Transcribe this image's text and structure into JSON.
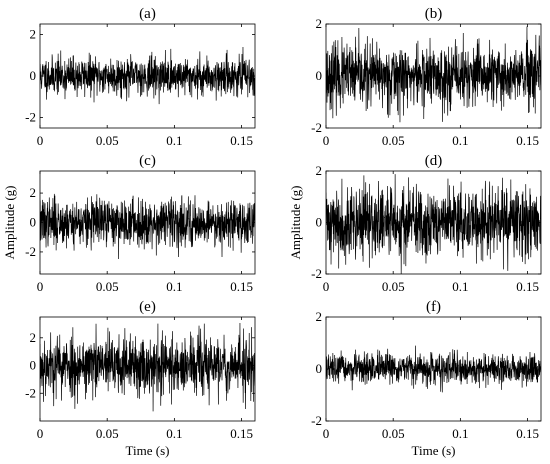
{
  "chart_data": [
    {
      "type": "line",
      "title": "(a)",
      "ylabel": "",
      "xlabel": "",
      "xlim": [
        0,
        0.16
      ],
      "ylim": [
        -2.5,
        2.5
      ],
      "xticks": [
        0,
        0.05,
        0.1,
        0.15
      ],
      "xtick_labels": [
        "0",
        "0.05",
        "0.1",
        "0.15"
      ],
      "yticks": [
        -2,
        0,
        2
      ],
      "ytick_labels": [
        "-2",
        "0",
        "2"
      ],
      "grid": false,
      "series": [
        {
          "amplitude_std": 0.45,
          "amplitude_peak": 2.3,
          "sample_interval_s": 0.00015,
          "seed": 11
        }
      ]
    },
    {
      "type": "line",
      "title": "(b)",
      "ylabel": "",
      "xlabel": "",
      "xlim": [
        0,
        0.16
      ],
      "ylim": [
        -2,
        2
      ],
      "xticks": [
        0,
        0.05,
        0.1,
        0.15
      ],
      "xtick_labels": [
        "0",
        "0.05",
        "0.1",
        "0.15"
      ],
      "yticks": [
        -2,
        0,
        2
      ],
      "ytick_labels": [
        "-2",
        "0",
        "2"
      ],
      "grid": false,
      "series": [
        {
          "amplitude_std": 0.6,
          "amplitude_peak": 2.0,
          "sample_interval_s": 0.00015,
          "seed": 23
        }
      ]
    },
    {
      "type": "line",
      "title": "(c)",
      "ylabel": "Amplitude (g)",
      "xlabel": "",
      "xlim": [
        0,
        0.16
      ],
      "ylim": [
        -3.5,
        3.5
      ],
      "xticks": [
        0,
        0.05,
        0.1,
        0.15
      ],
      "xtick_labels": [
        "0",
        "0.05",
        "0.1",
        "0.15"
      ],
      "yticks": [
        -2,
        0,
        2
      ],
      "ytick_labels": [
        "-2",
        "0",
        "2"
      ],
      "grid": false,
      "series": [
        {
          "amplitude_std": 0.8,
          "amplitude_peak": 3.3,
          "sample_interval_s": 0.00015,
          "seed": 37
        }
      ]
    },
    {
      "type": "line",
      "title": "(d)",
      "ylabel": "Amplitude (g)",
      "xlabel": "",
      "xlim": [
        0,
        0.16
      ],
      "ylim": [
        -2,
        2
      ],
      "xticks": [
        0,
        0.05,
        0.1,
        0.15
      ],
      "xtick_labels": [
        "0",
        "0.05",
        "0.1",
        "0.15"
      ],
      "yticks": [
        -2,
        0,
        2
      ],
      "ytick_labels": [
        "-2",
        "0",
        "2"
      ],
      "grid": false,
      "series": [
        {
          "amplitude_std": 0.7,
          "amplitude_peak": 2.0,
          "sample_interval_s": 0.00015,
          "seed": 41
        }
      ]
    },
    {
      "type": "line",
      "title": "(e)",
      "ylabel": "",
      "xlabel": "Time (s)",
      "xlim": [
        0,
        0.16
      ],
      "ylim": [
        -4,
        3.5
      ],
      "xticks": [
        0,
        0.05,
        0.1,
        0.15
      ],
      "xtick_labels": [
        "0",
        "0.05",
        "0.1",
        "0.15"
      ],
      "yticks": [
        -2,
        0,
        2
      ],
      "ytick_labels": [
        "-2",
        "0",
        "2"
      ],
      "grid": false,
      "series": [
        {
          "amplitude_std": 1.1,
          "amplitude_peak": 3.6,
          "sample_interval_s": 0.00015,
          "seed": 53
        }
      ]
    },
    {
      "type": "line",
      "title": "(f)",
      "ylabel": "",
      "xlabel": "Time (s)",
      "xlim": [
        0,
        0.16
      ],
      "ylim": [
        -2,
        2
      ],
      "xticks": [
        0,
        0.05,
        0.1,
        0.15
      ],
      "xtick_labels": [
        "0",
        "0.05",
        "0.1",
        "0.15"
      ],
      "yticks": [
        -2,
        0,
        2
      ],
      "ytick_labels": [
        "-2",
        "0",
        "2"
      ],
      "grid": false,
      "series": [
        {
          "amplitude_std": 0.28,
          "amplitude_peak": 0.9,
          "sample_interval_s": 0.00015,
          "seed": 67
        }
      ]
    }
  ],
  "colors": {
    "signal": "#000000",
    "axes": "#000000",
    "background": "#ffffff"
  }
}
